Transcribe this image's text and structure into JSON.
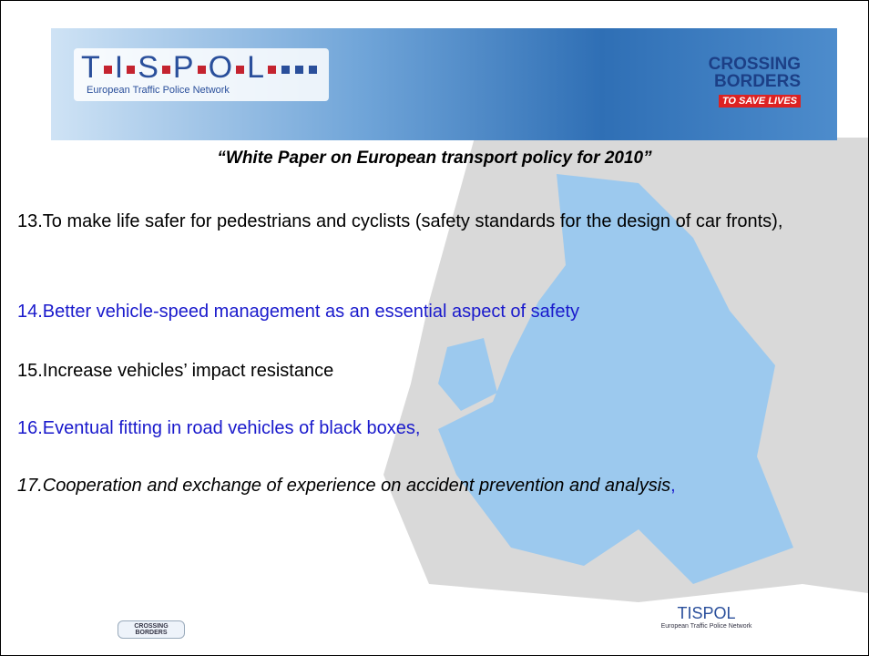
{
  "header": {
    "logo_letters": [
      "T",
      "I",
      "S",
      "P",
      "O",
      "L"
    ],
    "logo_subtitle": "European Traffic Police Network",
    "campaign": [
      "CROSSING",
      "BORDERS"
    ],
    "campaign_tagline": "TO SAVE LIVES"
  },
  "title": "“White Paper on European transport policy for 2010”",
  "items": [
    {
      "text": "13.To make life safer for pedestrians and cyclists (safety standards for the design of car fronts),"
    },
    {
      "text": "14.Better vehicle-speed management as an essential aspect of safety"
    },
    {
      "text": "15.Increase vehicles’ impact resistance"
    },
    {
      "text": "16.Eventual fitting in road vehicles of black boxes,"
    },
    {
      "text": "17.Cooperation and exchange of experience on accident prevention and analysis",
      "suffix": ","
    }
  ],
  "footer": {
    "left_logo": [
      "CROSSING",
      "BORDERS"
    ],
    "right_logo": "TISPOL",
    "right_logo_subtitle": "European Traffic Police Network"
  }
}
